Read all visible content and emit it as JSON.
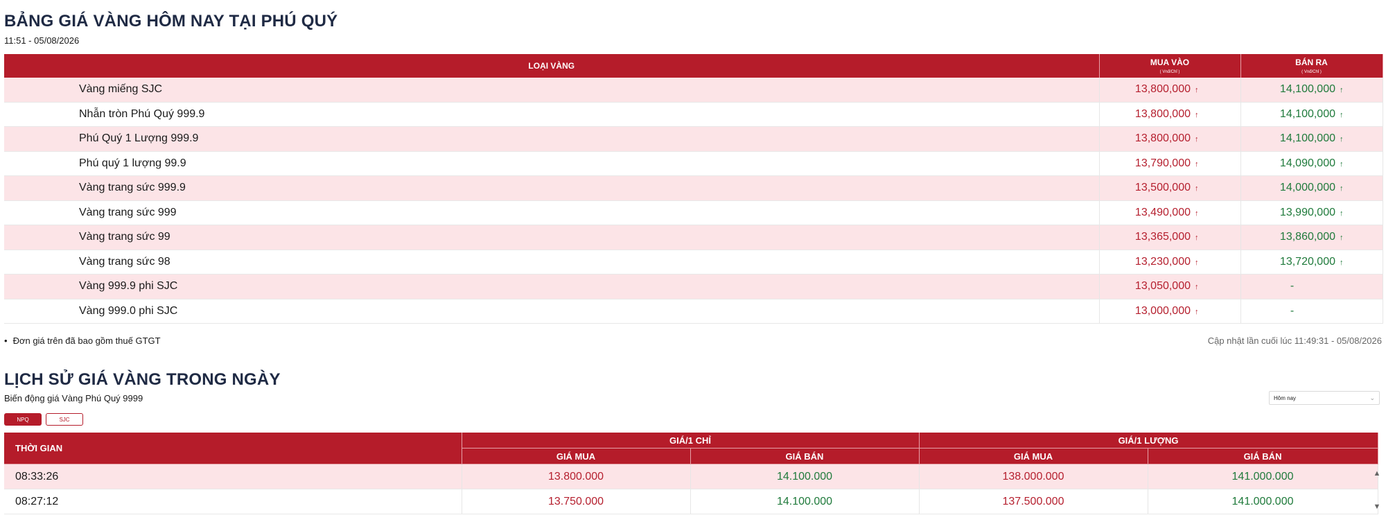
{
  "page": {
    "title": "BẢNG GIÁ VÀNG HÔM NAY TẠI PHÚ QUÝ",
    "timestamp": "11:51 - 05/08/2026"
  },
  "price_table": {
    "headers": {
      "type": "LOẠI VÀNG",
      "buy": "MUA VÀO",
      "buy_unit": "( Vnđ/Chỉ )",
      "sell": "BÁN RA",
      "sell_unit": "( Vnđ/Chỉ )"
    },
    "rows": [
      {
        "name": "Vàng miếng SJC",
        "buy": "13,800,000",
        "buy_arrow": "↑",
        "sell": "14,100,000",
        "sell_arrow": "↑"
      },
      {
        "name": "Nhẫn tròn Phú Quý 999.9",
        "buy": "13,800,000",
        "buy_arrow": "↑",
        "sell": "14,100,000",
        "sell_arrow": "↑"
      },
      {
        "name": "Phú Quý 1 Lượng 999.9",
        "buy": "13,800,000",
        "buy_arrow": "↑",
        "sell": "14,100,000",
        "sell_arrow": "↑"
      },
      {
        "name": "Phú quý 1 lượng 99.9",
        "buy": "13,790,000",
        "buy_arrow": "↑",
        "sell": "14,090,000",
        "sell_arrow": "↑"
      },
      {
        "name": "Vàng trang sức 999.9",
        "buy": "13,500,000",
        "buy_arrow": "↑",
        "sell": "14,000,000",
        "sell_arrow": "↑"
      },
      {
        "name": "Vàng trang sức 999",
        "buy": "13,490,000",
        "buy_arrow": "↑",
        "sell": "13,990,000",
        "sell_arrow": "↑"
      },
      {
        "name": "Vàng trang sức 99",
        "buy": "13,365,000",
        "buy_arrow": "↑",
        "sell": "13,860,000",
        "sell_arrow": "↑"
      },
      {
        "name": "Vàng trang sức 98",
        "buy": "13,230,000",
        "buy_arrow": "↑",
        "sell": "13,720,000",
        "sell_arrow": "↑"
      },
      {
        "name": "Vàng 999.9 phi SJC",
        "buy": "13,050,000",
        "buy_arrow": "↑",
        "sell": "-",
        "sell_arrow": ""
      },
      {
        "name": "Vàng 999.0 phi SJC",
        "buy": "13,000,000",
        "buy_arrow": "↑",
        "sell": "-",
        "sell_arrow": ""
      }
    ],
    "note": "Đơn giá trên đã bao gồm thuế GTGT",
    "last_updated": "Cập nhật lần cuối lúc 11:49:31 - 05/08/2026"
  },
  "history": {
    "title": "LỊCH SỬ GIÁ VÀNG TRONG NGÀY",
    "subtitle": "Biến động giá Vàng Phú Quý 9999",
    "tabs": [
      "NPQ",
      "SJC"
    ],
    "period_select": "Hôm nay",
    "headers": {
      "time": "THỜI GIAN",
      "per_chi": "GIÁ/1 CHỈ",
      "per_luong": "GIÁ/1 LƯỢNG",
      "buy": "GIÁ MUA",
      "sell": "GIÁ BÁN"
    },
    "rows": [
      {
        "time": "08:33:26",
        "chi_buy": "13.800.000",
        "chi_sell": "14.100.000",
        "luong_buy": "138.000.000",
        "luong_sell": "141.000.000"
      },
      {
        "time": "08:27:12",
        "chi_buy": "13.750.000",
        "chi_sell": "14.100.000",
        "luong_buy": "137.500.000",
        "luong_sell": "141.000.000"
      }
    ]
  },
  "colors": {
    "header_red": "#b51c2a",
    "row_pink": "#fce4e7",
    "buy_red": "#b51f2e",
    "sell_green": "#1f7a3b"
  }
}
